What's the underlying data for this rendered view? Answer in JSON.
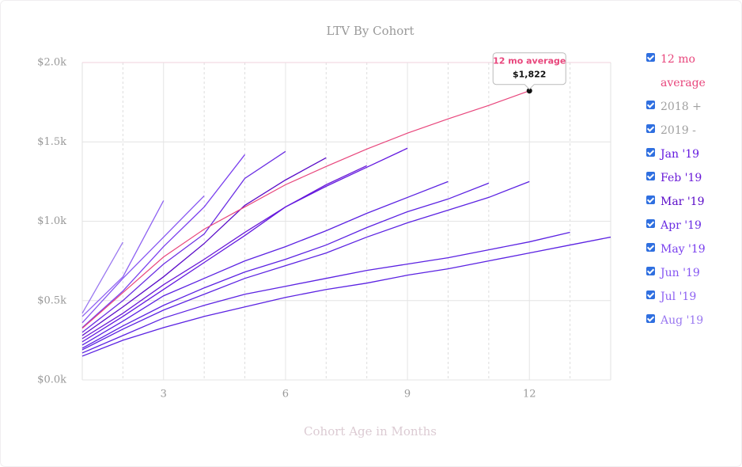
{
  "chart_data": {
    "type": "line",
    "title": "LTV By Cohort",
    "x_label": "Cohort Age in Months",
    "xlim": [
      1,
      14
    ],
    "xticks": [
      3,
      6,
      9,
      12
    ],
    "ylim": [
      0,
      2000
    ],
    "yticks": [
      {
        "value": 0,
        "label": "$0.0k"
      },
      {
        "value": 500,
        "label": "$0.5k"
      },
      {
        "value": 1000,
        "label": "$1.0k"
      },
      {
        "value": 1500,
        "label": "$1.5k"
      },
      {
        "value": 2000,
        "label": "$2.0k"
      }
    ],
    "grid": true,
    "legend_groups": [
      {
        "label": "2018 +",
        "color": "#a0a0a0"
      },
      {
        "label": "2019 -",
        "color": "#a0a0a0"
      }
    ],
    "series": [
      {
        "name": "12 mo average",
        "color": "#e8467c",
        "x": [
          1,
          2,
          3,
          4,
          5,
          6,
          7,
          8,
          9,
          10,
          11,
          12
        ],
        "values": [
          325,
          550,
          775,
          950,
          1090,
          1230,
          1345,
          1455,
          1555,
          1645,
          1730,
          1822
        ]
      },
      {
        "name": "Jan '19",
        "color": "#6318e0",
        "x": [
          1,
          2,
          3,
          4,
          5,
          6,
          7,
          8,
          9
        ],
        "values": [
          240,
          400,
          570,
          740,
          910,
          1090,
          1220,
          1340,
          1460
        ]
      },
      {
        "name": "Feb '19",
        "color": "#6a1ad8",
        "x": [
          1,
          2,
          3,
          4,
          5,
          6,
          7,
          8
        ],
        "values": [
          260,
          420,
          600,
          760,
          930,
          1090,
          1230,
          1350
        ]
      },
      {
        "name": "Mar '19",
        "color": "#5a0bc8",
        "x": [
          1,
          2,
          3,
          4,
          5,
          6,
          7
        ],
        "values": [
          280,
          460,
          650,
          860,
          1100,
          1260,
          1400
        ]
      },
      {
        "name": "Apr '19",
        "color": "#6b2fe3",
        "x": [
          1,
          2,
          3,
          4,
          5,
          6
        ],
        "values": [
          300,
          500,
          730,
          920,
          1270,
          1440
        ]
      },
      {
        "name": "May '19",
        "color": "#7a40ee",
        "x": [
          1,
          2,
          3,
          4,
          5
        ],
        "values": [
          330,
          560,
          840,
          1090,
          1420
        ]
      },
      {
        "name": "Jun '19",
        "color": "#8656f2",
        "x": [
          1,
          2,
          3,
          4
        ],
        "values": [
          360,
          640,
          900,
          1160
        ]
      },
      {
        "name": "Jul '19",
        "color": "#8e62f2",
        "x": [
          1,
          2,
          3
        ],
        "values": [
          400,
          650,
          1130
        ]
      },
      {
        "name": "Aug '19",
        "color": "#9a78f0",
        "x": [
          1,
          2
        ],
        "values": [
          420,
          868
        ]
      },
      {
        "color": "#5b22e2",
        "x": [
          1,
          2,
          3,
          4,
          5,
          6,
          7,
          8,
          9,
          10
        ],
        "values": [
          220,
          370,
          530,
          640,
          750,
          840,
          940,
          1050,
          1150,
          1250
        ]
      },
      {
        "color": "#5b22e2",
        "x": [
          1,
          2,
          3,
          4,
          5,
          6,
          7,
          8,
          9,
          10,
          11
        ],
        "values": [
          200,
          340,
          470,
          580,
          680,
          760,
          850,
          960,
          1060,
          1140,
          1240
        ]
      },
      {
        "color": "#5b22e2",
        "x": [
          1,
          2,
          3,
          4,
          5,
          6,
          7,
          8,
          9,
          10,
          11,
          12
        ],
        "values": [
          190,
          320,
          440,
          540,
          640,
          720,
          800,
          900,
          990,
          1070,
          1150,
          1250
        ]
      },
      {
        "color": "#5b22e2",
        "x": [
          1,
          2,
          3,
          4,
          5,
          6,
          7,
          8,
          9,
          10,
          11,
          12,
          13
        ],
        "values": [
          170,
          280,
          390,
          470,
          540,
          590,
          640,
          690,
          730,
          770,
          820,
          870,
          930
        ]
      },
      {
        "color": "#5b22e2",
        "x": [
          1,
          2,
          3,
          4,
          5,
          6,
          7,
          8,
          9,
          10,
          11,
          12,
          13,
          14
        ],
        "values": [
          150,
          250,
          330,
          400,
          460,
          520,
          570,
          610,
          660,
          700,
          750,
          800,
          850,
          900
        ]
      }
    ],
    "tooltip": {
      "title": "12 mo average",
      "value": 1822,
      "label": "$1,822"
    }
  }
}
